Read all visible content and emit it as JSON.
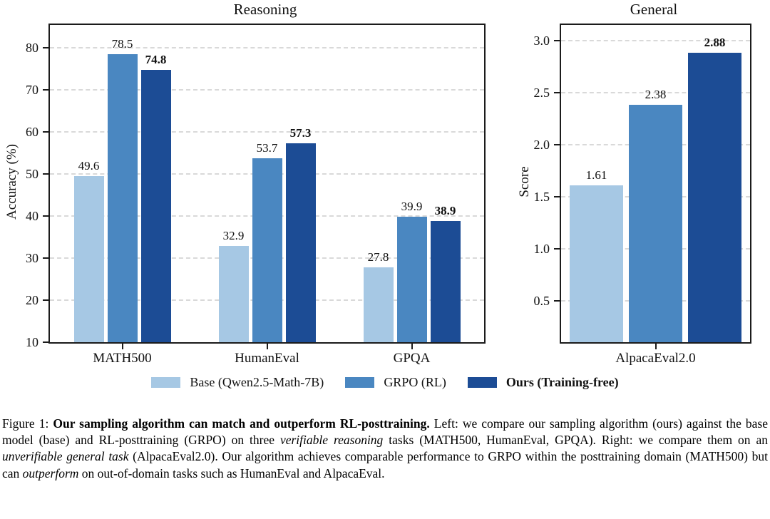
{
  "chart_data": [
    {
      "type": "bar",
      "title": "Reasoning",
      "ylabel": "Accuracy (%)",
      "xlabel": "",
      "categories": [
        "MATH500",
        "HumanEval",
        "GPQA"
      ],
      "series": [
        {
          "name": "Base (Qwen2.5-Math-7B)",
          "color": "#a6c8e4",
          "bold": false,
          "values": [
            49.6,
            32.9,
            27.8
          ],
          "labels": [
            "49.6",
            "32.9",
            "27.8"
          ]
        },
        {
          "name": "GRPO (RL)",
          "color": "#4a87c1",
          "bold": false,
          "values": [
            78.5,
            53.7,
            39.9
          ],
          "labels": [
            "78.5",
            "53.7",
            "39.9"
          ]
        },
        {
          "name": "Ours (Training-free)",
          "color": "#1c4c95",
          "bold": true,
          "values": [
            74.8,
            57.3,
            38.9
          ],
          "labels": [
            "74.8",
            "57.3",
            "38.9"
          ]
        }
      ],
      "ylim": [
        10,
        85.5
      ],
      "yticks": [
        "10",
        "20",
        "30",
        "40",
        "50",
        "60",
        "70",
        "80"
      ],
      "grid": "dashed-horizontal",
      "legend_position": "below-figure"
    },
    {
      "type": "bar",
      "title": "General",
      "ylabel": "Score",
      "xlabel": "",
      "categories": [
        "AlpacaEval2.0"
      ],
      "series": [
        {
          "name": "Base (Qwen2.5-Math-7B)",
          "color": "#a6c8e4",
          "bold": false,
          "values": [
            1.61
          ],
          "labels": [
            "1.61"
          ]
        },
        {
          "name": "GRPO (RL)",
          "color": "#4a87c1",
          "bold": false,
          "values": [
            2.38
          ],
          "labels": [
            "2.38"
          ]
        },
        {
          "name": "Ours (Training-free)",
          "color": "#1c4c95",
          "bold": true,
          "values": [
            2.88
          ],
          "labels": [
            "2.88"
          ]
        }
      ],
      "ylim": [
        0.1,
        3.15
      ],
      "yticks": [
        "0.5",
        "1.0",
        "1.5",
        "2.0",
        "2.5",
        "3.0"
      ],
      "grid": "dashed-horizontal",
      "legend_position": "below-figure"
    }
  ],
  "legend": {
    "items": [
      {
        "label": "Base (Qwen2.5-Math-7B)",
        "color": "#a6c8e4",
        "bold": false
      },
      {
        "label": "GRPO (RL)",
        "color": "#4a87c1",
        "bold": false
      },
      {
        "label": "Ours (Training-free)",
        "color": "#1c4c95",
        "bold": true
      }
    ]
  },
  "caption": {
    "segments": [
      {
        "text": "Figure 1: ",
        "style": "normal"
      },
      {
        "text": "Our sampling algorithm can match and outperform RL-posttraining.",
        "style": "bold"
      },
      {
        "text": " Left: we compare our sampling algorithm (ours) against the base model (base) and RL-posttraining (GRPO) on three ",
        "style": "normal"
      },
      {
        "text": "verifiable reasoning",
        "style": "italic"
      },
      {
        "text": " tasks (MATH500, HumanEval, GPQA). Right: we compare them on an ",
        "style": "normal"
      },
      {
        "text": "unverifiable general task",
        "style": "italic"
      },
      {
        "text": " (AlpacaEval2.0). Our algorithm achieves comparable performance to GRPO within the posttraining domain (MATH500) but can ",
        "style": "normal"
      },
      {
        "text": "outperform",
        "style": "italic"
      },
      {
        "text": " on out-of-domain tasks such as HumanEval and AlpacaEval.",
        "style": "normal"
      }
    ]
  }
}
